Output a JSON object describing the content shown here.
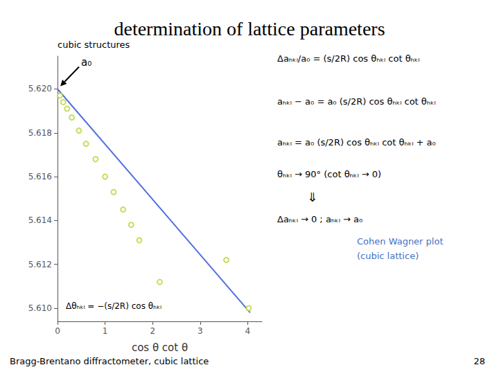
{
  "chart_data": {
    "type": "scatter",
    "title": "determination of lattice parameters",
    "x_label": "cos θ cot θ",
    "xlim": [
      0,
      4.3
    ],
    "ylim": [
      5.6094,
      5.6215
    ],
    "xticks": [
      0,
      1,
      2,
      3,
      4
    ],
    "yticks": [
      {
        "value": 5.61,
        "label": "5.610"
      },
      {
        "value": 5.612,
        "label": "5.612"
      },
      {
        "value": 5.614,
        "label": "5.614"
      },
      {
        "value": 5.616,
        "label": "5.616"
      },
      {
        "value": 5.618,
        "label": "5.618"
      },
      {
        "value": 5.62,
        "label": "5.620"
      }
    ],
    "grid": false,
    "series": [
      {
        "type": "line",
        "line_style": "solid",
        "x": [
          0,
          4.05
        ],
        "values": [
          5.62,
          5.6098
        ]
      },
      {
        "type": "scatter",
        "marker": "open_circle",
        "x": [
          0.05,
          0.12,
          0.2,
          0.3,
          0.45,
          0.6,
          0.8,
          1.0,
          1.18,
          1.38,
          1.55,
          1.72,
          2.15,
          3.55,
          4.02
        ],
        "values": [
          5.6197,
          5.6194,
          5.6191,
          5.6187,
          5.6181,
          5.6175,
          5.6168,
          5.616,
          5.6153,
          5.6145,
          5.6138,
          5.6131,
          5.6112,
          5.6122,
          5.61
        ]
      }
    ],
    "annotations": [
      {
        "text": "cubic structures"
      },
      {
        "text": "a₀"
      },
      {
        "text": "Δθₕₖₗ = −(s/2R) cos θₕₖₗ"
      },
      {
        "text": "Δaₕₖₗ/a₀ = (s/2R) cos θₕₖₗ cot θₕₖₗ"
      },
      {
        "text": "aₕₖₗ − a₀ = a₀ (s/2R) cos θₕₖₗ cot θₕₖₗ"
      },
      {
        "text": "aₕₖₗ = a₀ (s/2R) cos θₕₖₗ cot θₕₖₗ + a₀"
      },
      {
        "text": "θₕₖₗ → 90° (cot θₕₖₗ → 0)"
      },
      {
        "text": "⇓"
      },
      {
        "text": "Δaₕₖₗ → 0 ; aₕₖₗ → a₀"
      },
      {
        "text": "Cohen Wagner plot\n(cubic lattice)",
        "color": "#4472C4"
      },
      {
        "text": "Bragg-Brentano diffractometer, cubic lattice"
      },
      {
        "text": "28"
      }
    ]
  }
}
